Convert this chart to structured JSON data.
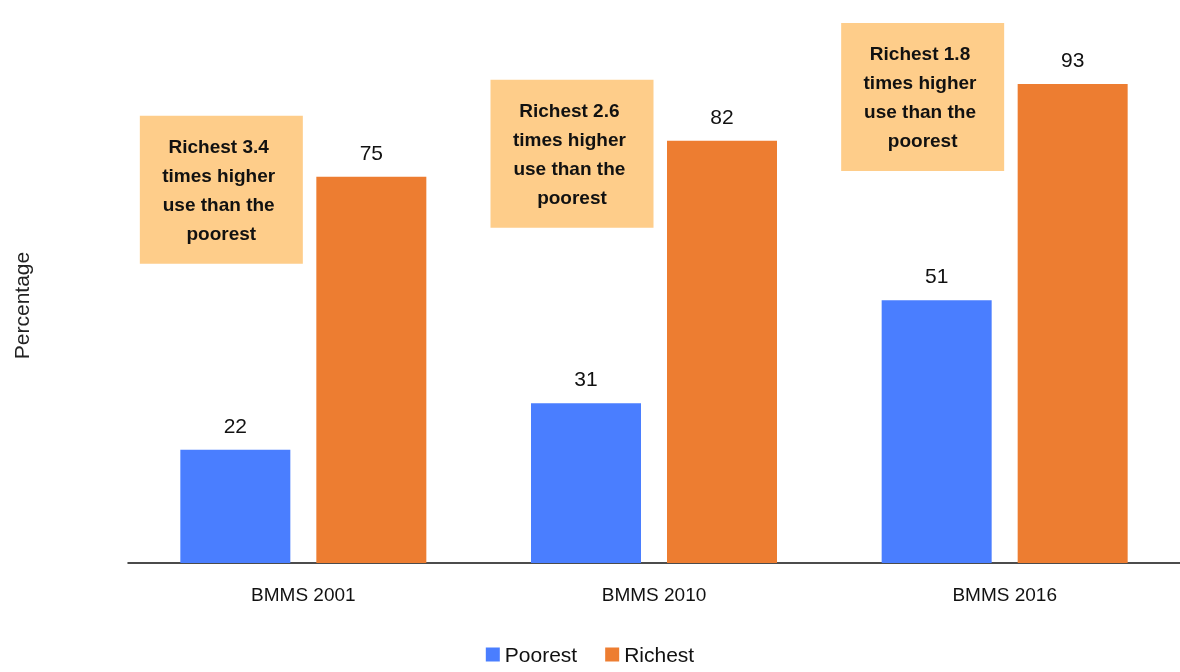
{
  "chart_data": {
    "type": "bar",
    "ylabel": "Percentage",
    "categories": [
      "BMMS 2001",
      "BMMS 2010",
      "BMMS 2016"
    ],
    "series": [
      {
        "name": "Poorest",
        "color": "#4a7eff",
        "values": [
          22,
          31,
          51
        ]
      },
      {
        "name": "Richest",
        "color": "#ed7d31",
        "values": [
          75,
          82,
          93
        ]
      }
    ],
    "annotations": [
      "Richest 3.4 times higher use than the poorest",
      "Richest 2.6 times higher use than the poorest",
      "Richest 1.8 times higher use than the poorest"
    ],
    "data_labels": true,
    "grid": false,
    "legend": "bottom"
  }
}
